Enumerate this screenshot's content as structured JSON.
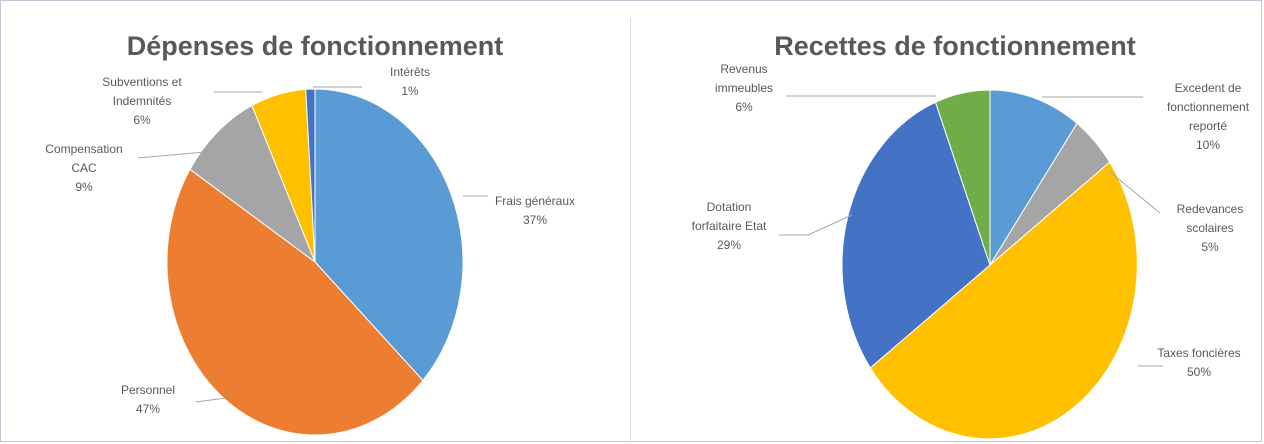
{
  "chart_data": [
    {
      "type": "pie",
      "title": "Dépenses de fonctionnement",
      "categories": [
        "Frais généraux",
        "Personnel",
        "Compensation CAC",
        "Subventions et Indemnités",
        "Intérêts"
      ],
      "values": [
        37,
        47,
        9,
        6,
        1
      ],
      "value_labels": [
        "37%",
        "47%",
        "9%",
        "6%",
        "1%"
      ],
      "label_lines": [
        [
          "Frais généraux"
        ],
        [
          "Personnel"
        ],
        [
          "Compensation",
          "CAC"
        ],
        [
          "Subventions et",
          "Indemnités"
        ],
        [
          "Intérêts"
        ]
      ],
      "colors": [
        "#5b9bd5",
        "#ed7d31",
        "#a5a5a5",
        "#ffc000",
        "#4472c4"
      ],
      "legend": "none",
      "data_labels": "outside-with-leader-lines"
    },
    {
      "type": "pie",
      "title": "Recettes de fonctionnement",
      "categories": [
        "Excedent de fonctionnement reporté",
        "Redevances scolaires",
        "Taxes foncières",
        "Dotation forfaitaire Etat",
        "Revenus immeubles"
      ],
      "values": [
        10,
        5,
        50,
        29,
        6
      ],
      "value_labels": [
        "10%",
        "5%",
        "50%",
        "29%",
        "6%"
      ],
      "label_lines": [
        [
          "Excedent de",
          "fonctionnement",
          "reporté"
        ],
        [
          "Redevances",
          "scolaires"
        ],
        [
          "Taxes foncières"
        ],
        [
          "Dotation",
          "forfaitaire Etat"
        ],
        [
          "Revenus",
          "immeubles"
        ]
      ],
      "colors": [
        "#5b9bd5",
        "#a5a5a5",
        "#ffc000",
        "#4472c4",
        "#70ad47"
      ],
      "legend": "none",
      "data_labels": "outside-with-leader-lines"
    }
  ]
}
